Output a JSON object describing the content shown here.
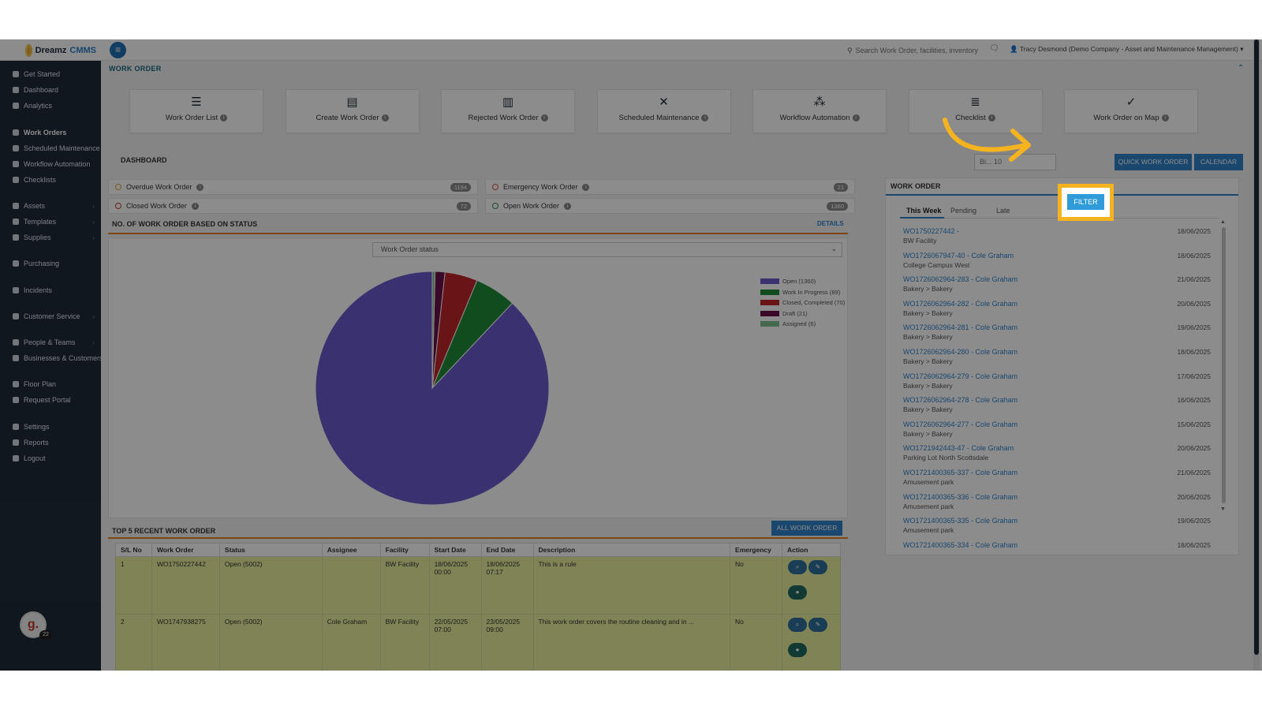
{
  "app": {
    "brand_prefix": "Dreamz",
    "brand_suffix": "CMMS"
  },
  "topbar": {
    "search_placeholder": "Search Work Order, facilities, inventory",
    "user_label": "Tracy Desmond (Demo Company - Asset and Maintenance Management)"
  },
  "sidebar": {
    "items": [
      {
        "label": "Get Started",
        "icon": "rocket-icon"
      },
      {
        "label": "Dashboard",
        "icon": "dashboard-icon"
      },
      {
        "label": "Analytics",
        "icon": "analytics-icon"
      },
      {
        "label": "Work Orders",
        "icon": "wrench-icon"
      },
      {
        "label": "Scheduled Maintenance",
        "icon": "wrench-icon"
      },
      {
        "label": "Workflow Automation",
        "icon": "workflow-icon"
      },
      {
        "label": "Checklists",
        "icon": "checklist-icon"
      },
      {
        "label": "Assets",
        "icon": "assets-icon"
      },
      {
        "label": "Templates",
        "icon": "templates-icon"
      },
      {
        "label": "Supplies",
        "icon": "supplies-icon"
      },
      {
        "label": "Purchasing",
        "icon": "cart-icon"
      },
      {
        "label": "Incidents",
        "icon": "incidents-icon"
      },
      {
        "label": "Customer Service",
        "icon": "document-icon"
      },
      {
        "label": "People & Teams",
        "icon": "people-icon"
      },
      {
        "label": "Businesses & Customers",
        "icon": "briefcase-icon"
      },
      {
        "label": "Floor Plan",
        "icon": "print-icon"
      },
      {
        "label": "Request Portal",
        "icon": "chat-icon"
      },
      {
        "label": "Settings",
        "icon": "gear-icon"
      },
      {
        "label": "Reports",
        "icon": "report-icon"
      },
      {
        "label": "Logout",
        "icon": "user-icon"
      }
    ],
    "avatar_letter": "g.",
    "avatar_badge": "22"
  },
  "page": {
    "section_title": "WORK ORDER",
    "tiles": [
      {
        "label": "Work Order List",
        "icon": "list-icon"
      },
      {
        "label": "Create Work Order",
        "icon": "file-icon"
      },
      {
        "label": "Rejected Work Order",
        "icon": "trash-icon"
      },
      {
        "label": "Scheduled Maintenance",
        "icon": "tools-icon"
      },
      {
        "label": "Workflow Automation",
        "icon": "nodes-icon"
      },
      {
        "label": "Checklist",
        "icon": "checklist-icon"
      },
      {
        "label": "Work Order on Map",
        "icon": "map-check-icon"
      }
    ],
    "dashboard_label": "DASHBOARD",
    "date_range_value": "Bi... 10",
    "filter_label": "FILTER",
    "quick_label": "QUICK WORK ORDER",
    "calendar_label": "CALENDAR"
  },
  "stats": [
    {
      "label": "Overdue Work Order",
      "count": "1194",
      "color": "#e6a23c"
    },
    {
      "label": "Emergency Work Order",
      "count": "21",
      "color": "#e74c3c"
    },
    {
      "label": "Closed Work Order",
      "count": "72",
      "color": "#c0392b"
    },
    {
      "label": "Open Work Order",
      "count": "1360",
      "color": "#2e8b57"
    }
  ],
  "pie": {
    "title": "NO. OF WORK ORDER BASED ON STATUS",
    "details_label": "DETAILS",
    "select_value": "Work Order status"
  },
  "chart_data": {
    "type": "pie",
    "title": "NO. OF WORK ORDER BASED ON STATUS",
    "series": [
      {
        "name": "Open (1360)",
        "value": 1360,
        "color": "#6a5acd"
      },
      {
        "name": "Work In Progress (89)",
        "value": 89,
        "color": "#1f8a3a"
      },
      {
        "name": "Closed, Completed (70)",
        "value": 70,
        "color": "#c0272d"
      },
      {
        "name": "Draft (21)",
        "value": 21,
        "color": "#6b0f4a"
      },
      {
        "name": "Assigned (6)",
        "value": 6,
        "color": "#7fbf8a"
      }
    ],
    "legend": "right"
  },
  "recent": {
    "title": "TOP 5 RECENT WORK ORDER",
    "all_label": "ALL WORK ORDER",
    "columns": [
      "S/L No",
      "Work Order",
      "Status",
      "Assignee",
      "Facility",
      "Start Date",
      "End Date",
      "Description",
      "Emergency",
      "Action"
    ],
    "rows": [
      {
        "sl": "1",
        "wo": "WO1750227442",
        "status": "Open (5002)",
        "assignee": "",
        "facility": "BW Facility",
        "start": "18/06/2025 00:00",
        "end": "18/06/2025 07:17",
        "desc": "This is a rule",
        "emergency": "No"
      },
      {
        "sl": "2",
        "wo": "WO1747938275",
        "status": "Open (5002)",
        "assignee": "Cole Graham",
        "facility": "BW Facility",
        "start": "22/05/2025 07:00",
        "end": "23/05/2025 09:00",
        "desc": "This work order covers the routine cleaning and in ...",
        "emergency": "No"
      }
    ]
  },
  "wo_panel": {
    "title": "WORK ORDER",
    "tabs": [
      "This Week",
      "Pending",
      "Late"
    ],
    "items": [
      {
        "id": "WO1750227442 -",
        "loc": "BW Facility",
        "date": "18/06/2025"
      },
      {
        "id": "WO1726067947-40 - Cole Graham",
        "loc": "College Campus West",
        "date": "18/06/2025"
      },
      {
        "id": "WO1726062964-283 - Cole Graham",
        "loc": "Bakery > Bakery",
        "date": "21/06/2025"
      },
      {
        "id": "WO1726062964-282 - Cole Graham",
        "loc": "Bakery > Bakery",
        "date": "20/06/2025"
      },
      {
        "id": "WO1726062964-281 - Cole Graham",
        "loc": "Bakery > Bakery",
        "date": "19/06/2025"
      },
      {
        "id": "WO1726062964-280 - Cole Graham",
        "loc": "Bakery > Bakery",
        "date": "18/06/2025"
      },
      {
        "id": "WO1726062964-279 - Cole Graham",
        "loc": "Bakery > Bakery",
        "date": "17/06/2025"
      },
      {
        "id": "WO1726062964-278 - Cole Graham",
        "loc": "Bakery > Bakery",
        "date": "16/06/2025"
      },
      {
        "id": "WO1726062964-277 - Cole Graham",
        "loc": "Bakery > Bakery",
        "date": "15/06/2025"
      },
      {
        "id": "WO1721942443-47 - Cole Graham",
        "loc": "Parking Lot North Scottsdale",
        "date": "20/06/2025"
      },
      {
        "id": "WO1721400365-337 - Cole Graham",
        "loc": "Amusement park",
        "date": "21/06/2025"
      },
      {
        "id": "WO1721400365-336 - Cole Graham",
        "loc": "Amusement park",
        "date": "20/06/2025"
      },
      {
        "id": "WO1721400365-335 - Cole Graham",
        "loc": "Amusement park",
        "date": "19/06/2025"
      },
      {
        "id": "WO1721400365-334 - Cole Graham",
        "loc": "",
        "date": "18/06/2025"
      }
    ]
  }
}
